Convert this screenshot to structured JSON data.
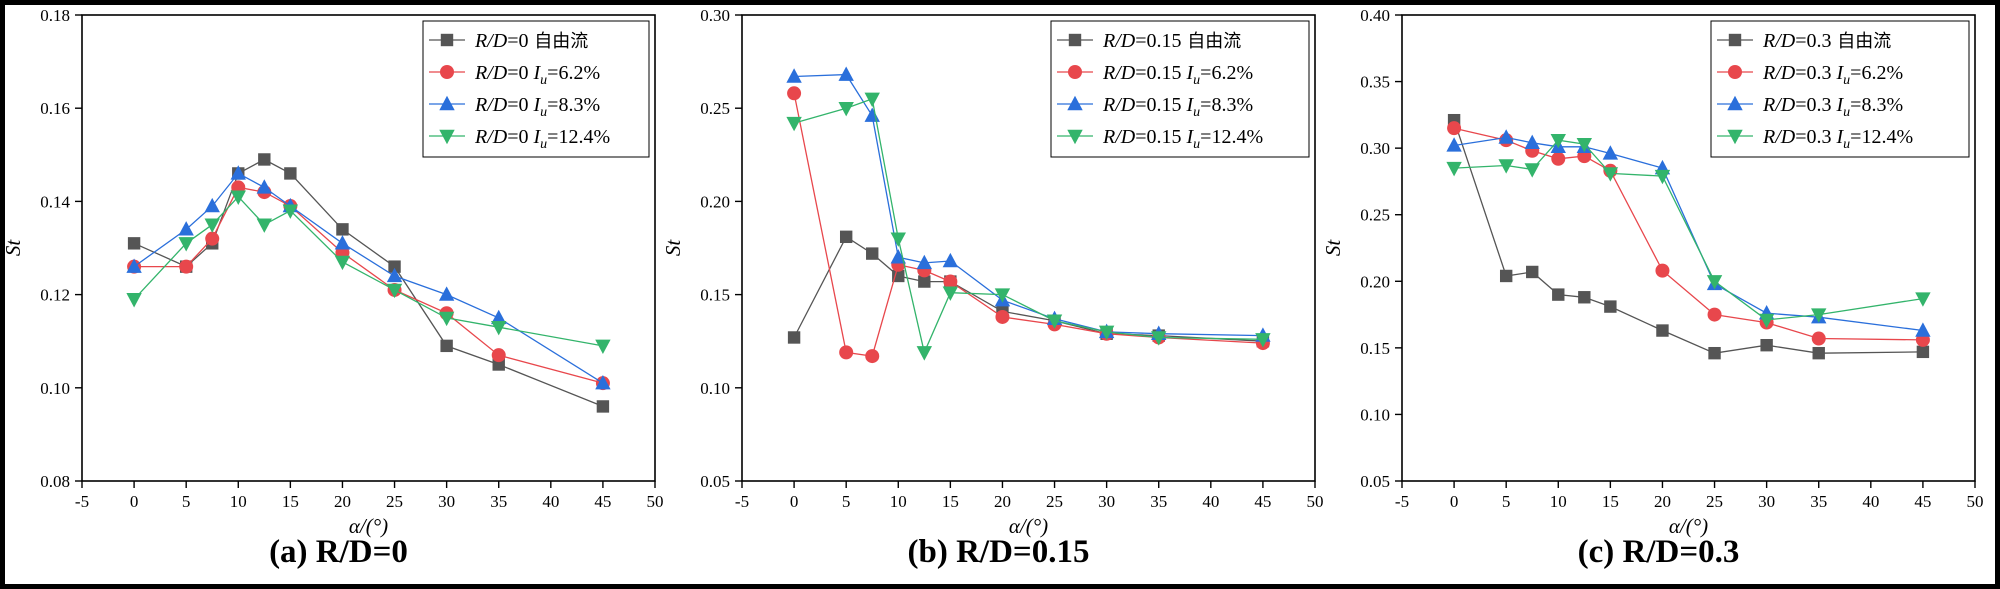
{
  "figure": {
    "background": "#ffffff",
    "frame_color": "#000000"
  },
  "chart_data": [
    {
      "type": "line",
      "caption": "(a) R/D=0",
      "xlabel": "α/(°)",
      "ylabel": "St",
      "xlim": [
        -5,
        50
      ],
      "ylim": [
        0.08,
        0.18
      ],
      "xticks": [
        -5,
        0,
        5,
        10,
        15,
        20,
        25,
        30,
        35,
        40,
        45,
        50
      ],
      "yticks": [
        0.08,
        0.1,
        0.12,
        0.14,
        0.16,
        0.18
      ],
      "ytick_labels": [
        "0.08",
        "0.10",
        "0.12",
        "0.14",
        "0.16",
        "0.18"
      ],
      "x": [
        0,
        5,
        7.5,
        10,
        12.5,
        15,
        20,
        25,
        30,
        35,
        45
      ],
      "legend_position": "top-right",
      "series": [
        {
          "label_ratio": "R/D",
          "label_value": "=0",
          "label_suffix": " 自由流",
          "label_iu": "",
          "marker": "square",
          "color": "#555555",
          "values": [
            0.131,
            0.126,
            0.131,
            0.146,
            0.149,
            0.146,
            0.134,
            0.126,
            0.109,
            0.105,
            0.096
          ]
        },
        {
          "label_ratio": "R/D",
          "label_value": "=0 ",
          "label_suffix": "",
          "label_iu": "=6.2%",
          "marker": "circle",
          "color": "#e8474c",
          "values": [
            0.126,
            0.126,
            0.132,
            0.143,
            0.142,
            0.139,
            0.129,
            0.121,
            0.116,
            0.107,
            0.101
          ]
        },
        {
          "label_ratio": "R/D",
          "label_value": "=0 ",
          "label_suffix": "",
          "label_iu": "=8.3%",
          "marker": "triangle-up",
          "color": "#2a6fdb",
          "values": [
            0.126,
            0.134,
            0.139,
            0.146,
            0.143,
            0.139,
            0.131,
            0.124,
            0.12,
            0.115,
            0.101
          ]
        },
        {
          "label_ratio": "R/D",
          "label_value": "=0 ",
          "label_suffix": "",
          "label_iu": "=12.4%",
          "marker": "triangle-down",
          "color": "#33b46b",
          "values": [
            0.119,
            0.131,
            0.135,
            0.141,
            0.135,
            0.138,
            0.127,
            0.121,
            0.115,
            0.113,
            0.109
          ]
        }
      ]
    },
    {
      "type": "line",
      "caption": "(b) R/D=0.15",
      "xlabel": "α/(°)",
      "ylabel": "St",
      "xlim": [
        -5,
        50
      ],
      "ylim": [
        0.05,
        0.3
      ],
      "xticks": [
        -5,
        0,
        5,
        10,
        15,
        20,
        25,
        30,
        35,
        40,
        45,
        50
      ],
      "yticks": [
        0.05,
        0.1,
        0.15,
        0.2,
        0.25,
        0.3
      ],
      "ytick_labels": [
        "0.05",
        "0.10",
        "0.15",
        "0.20",
        "0.25",
        "0.30"
      ],
      "x": [
        0,
        5,
        7.5,
        10,
        12.5,
        15,
        20,
        25,
        30,
        35,
        45
      ],
      "legend_position": "top-right",
      "series": [
        {
          "label_ratio": "R/D",
          "label_value": "=0.15",
          "label_suffix": " 自由流",
          "label_iu": "",
          "marker": "square",
          "color": "#555555",
          "values": [
            0.127,
            0.181,
            0.172,
            0.16,
            0.157,
            0.157,
            0.141,
            0.136,
            0.129,
            0.128,
            0.125
          ]
        },
        {
          "label_ratio": "R/D",
          "label_value": "=0.15 ",
          "label_suffix": "",
          "label_iu": "=6.2%",
          "marker": "circle",
          "color": "#e8474c",
          "values": [
            0.258,
            0.119,
            0.117,
            0.166,
            0.163,
            0.157,
            0.138,
            0.134,
            0.129,
            0.127,
            0.124
          ]
        },
        {
          "label_ratio": "R/D",
          "label_value": "=0.15 ",
          "label_suffix": "",
          "label_iu": "=8.3%",
          "marker": "triangle-up",
          "color": "#2a6fdb",
          "values": [
            0.267,
            0.268,
            0.246,
            0.17,
            0.167,
            0.168,
            0.147,
            0.137,
            0.13,
            0.129,
            0.128
          ]
        },
        {
          "label_ratio": "R/D",
          "label_value": "=0.15 ",
          "label_suffix": "",
          "label_iu": "=12.4%",
          "marker": "triangle-down",
          "color": "#33b46b",
          "values": [
            0.242,
            0.25,
            0.255,
            0.18,
            0.119,
            0.151,
            0.15,
            0.136,
            0.13,
            0.127,
            0.126
          ]
        }
      ]
    },
    {
      "type": "line",
      "caption": "(c) R/D=0.3",
      "xlabel": "α/(°)",
      "ylabel": "St",
      "xlim": [
        -5,
        50
      ],
      "ylim": [
        0.05,
        0.4
      ],
      "xticks": [
        -5,
        0,
        5,
        10,
        15,
        20,
        25,
        30,
        35,
        40,
        45,
        50
      ],
      "yticks": [
        0.05,
        0.1,
        0.15,
        0.2,
        0.25,
        0.3,
        0.35,
        0.4
      ],
      "ytick_labels": [
        "0.05",
        "0.10",
        "0.15",
        "0.20",
        "0.25",
        "0.30",
        "0.35",
        "0.40"
      ],
      "x": [
        0,
        5,
        7.5,
        10,
        12.5,
        15,
        20,
        25,
        30,
        35,
        45
      ],
      "legend_position": "top-right",
      "series": [
        {
          "label_ratio": "R/D",
          "label_value": "=0.3",
          "label_suffix": " 自由流",
          "label_iu": "",
          "marker": "square",
          "color": "#555555",
          "values": [
            0.321,
            0.204,
            0.207,
            0.19,
            0.188,
            0.181,
            0.163,
            0.146,
            0.152,
            0.146,
            0.147
          ]
        },
        {
          "label_ratio": "R/D",
          "label_value": "=0.3 ",
          "label_suffix": "",
          "label_iu": "=6.2%",
          "marker": "circle",
          "color": "#e8474c",
          "values": [
            0.315,
            0.306,
            0.298,
            0.292,
            0.294,
            0.283,
            0.208,
            0.175,
            0.169,
            0.157,
            0.156
          ]
        },
        {
          "label_ratio": "R/D",
          "label_value": "=0.3 ",
          "label_suffix": "",
          "label_iu": "=8.3%",
          "marker": "triangle-up",
          "color": "#2a6fdb",
          "values": [
            0.302,
            0.308,
            0.304,
            0.301,
            0.301,
            0.296,
            0.285,
            0.198,
            0.176,
            0.173,
            0.163
          ]
        },
        {
          "label_ratio": "R/D",
          "label_value": "=0.3 ",
          "label_suffix": "",
          "label_iu": "=12.4%",
          "marker": "triangle-down",
          "color": "#33b46b",
          "values": [
            0.285,
            0.287,
            0.284,
            0.306,
            0.303,
            0.281,
            0.279,
            0.2,
            0.171,
            0.175,
            0.187
          ]
        }
      ]
    }
  ]
}
